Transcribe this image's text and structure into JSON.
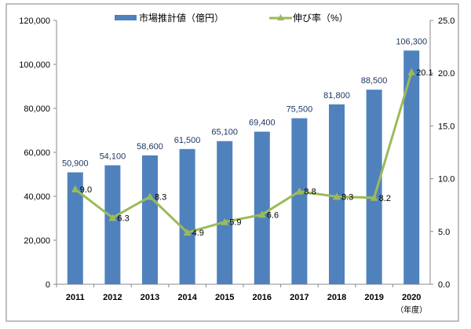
{
  "chart_data": {
    "type": "bar+line",
    "categories": [
      "2011",
      "2012",
      "2013",
      "2014",
      "2015",
      "2016",
      "2017",
      "2018",
      "2019",
      "2020"
    ],
    "x_unit_label": "（年度）",
    "series": [
      {
        "name": "市場推計値（億円）",
        "type": "bar",
        "axis": "left",
        "color": "#4f81bd",
        "values": [
          50900,
          54100,
          58600,
          61500,
          65100,
          69400,
          75500,
          81800,
          88500,
          106300
        ],
        "labels": [
          "50,900",
          "54,100",
          "58,600",
          "61,500",
          "65,100",
          "69,400",
          "75,500",
          "81,800",
          "88,500",
          "106,300"
        ]
      },
      {
        "name": "伸び率（%）",
        "type": "line",
        "axis": "right",
        "color": "#9bbb59",
        "values": [
          9.0,
          6.3,
          8.3,
          4.9,
          5.9,
          6.6,
          8.8,
          8.3,
          8.2,
          20.1
        ],
        "labels": [
          "9.0",
          "6.3",
          "8.3",
          "4.9",
          "5.9",
          "6.6",
          "8.8",
          "8.3",
          "8.2",
          "20.1"
        ]
      }
    ],
    "y_left": {
      "range": [
        0,
        120000
      ],
      "ticks": [
        "0",
        "20,000",
        "40,000",
        "60,000",
        "80,000",
        "100,000",
        "120,000"
      ]
    },
    "y_right": {
      "range": [
        0,
        25
      ],
      "ticks": [
        "0.0",
        "5.0",
        "10.0",
        "15.0",
        "20.0",
        "25.0"
      ]
    },
    "legend": "top",
    "grid": false
  }
}
